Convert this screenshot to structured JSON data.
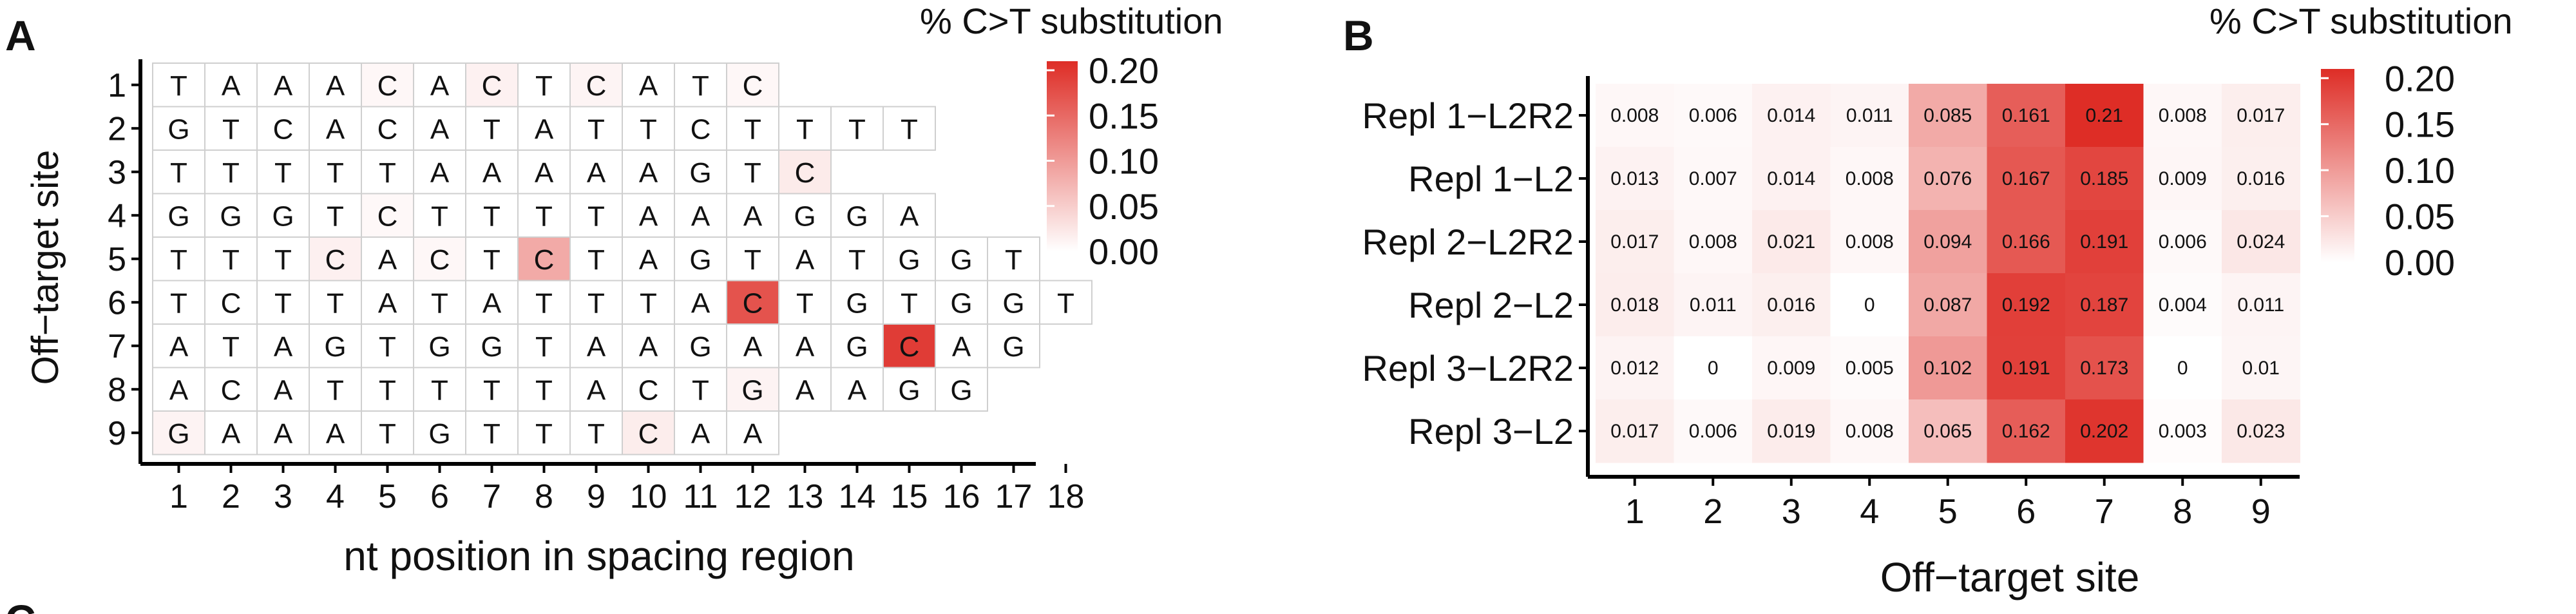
{
  "panels": {
    "a_letter": "A",
    "b_letter": "B",
    "c_letter": "C"
  },
  "colors": {
    "low": "#ffffff",
    "high": "#de2d26",
    "grid": "#cfcfcf",
    "axis": "#000000"
  },
  "chart_data": [
    {
      "type": "heatmap",
      "panel": "A",
      "xlabel": "nt position in spacing region",
      "ylabel": "Off−target site",
      "legend_title": "% C>T substitution",
      "legend_ticks": [
        "0.20",
        "0.15",
        "0.10",
        "0.05",
        "0.00"
      ],
      "x_ticks": [
        "1",
        "2",
        "3",
        "4",
        "5",
        "6",
        "7",
        "8",
        "9",
        "10",
        "11",
        "12",
        "13",
        "14",
        "15",
        "16",
        "17",
        "18"
      ],
      "y_ticks": [
        "1",
        "2",
        "3",
        "4",
        "5",
        "6",
        "7",
        "8",
        "9"
      ],
      "value_range": [
        0,
        0.21
      ],
      "rows": [
        {
          "site": "1",
          "seq": [
            "T",
            "A",
            "A",
            "A",
            "C",
            "A",
            "C",
            "T",
            "C",
            "A",
            "T",
            "C"
          ],
          "values": [
            0,
            0,
            0,
            0,
            0.008,
            0,
            0.014,
            0,
            0.011,
            0,
            0,
            0.008
          ]
        },
        {
          "site": "2",
          "seq": [
            "G",
            "T",
            "C",
            "A",
            "C",
            "A",
            "T",
            "A",
            "T",
            "T",
            "C",
            "T",
            "T",
            "T",
            "T"
          ],
          "values": [
            0,
            0,
            0,
            0,
            0,
            0,
            0,
            0,
            0,
            0,
            0,
            0,
            0,
            0,
            0
          ]
        },
        {
          "site": "3",
          "seq": [
            "T",
            "T",
            "T",
            "T",
            "T",
            "A",
            "A",
            "A",
            "A",
            "A",
            "G",
            "T",
            "C"
          ],
          "values": [
            0,
            0,
            0,
            0,
            0,
            0,
            0,
            0,
            0,
            0,
            0,
            0,
            0.02
          ]
        },
        {
          "site": "4",
          "seq": [
            "G",
            "G",
            "G",
            "T",
            "C",
            "T",
            "T",
            "T",
            "T",
            "A",
            "A",
            "A",
            "G",
            "G",
            "A"
          ],
          "values": [
            0,
            0,
            0,
            0,
            0.007,
            0,
            0,
            0,
            0,
            0,
            0,
            0,
            0,
            0,
            0
          ]
        },
        {
          "site": "5",
          "seq": [
            "T",
            "T",
            "T",
            "C",
            "A",
            "C",
            "T",
            "C",
            "T",
            "A",
            "G",
            "T",
            "A",
            "T",
            "G",
            "G",
            "T"
          ],
          "values": [
            0,
            0,
            0,
            0.015,
            0,
            0.008,
            0,
            0.085,
            0,
            0,
            0,
            0,
            0,
            0,
            0,
            0,
            0
          ]
        },
        {
          "site": "6",
          "seq": [
            "T",
            "C",
            "T",
            "T",
            "A",
            "T",
            "A",
            "T",
            "T",
            "T",
            "A",
            "C",
            "T",
            "G",
            "T",
            "G",
            "G",
            "T"
          ],
          "values": [
            0,
            0,
            0,
            0,
            0,
            0,
            0,
            0,
            0,
            0,
            0,
            0.172,
            0,
            0,
            0,
            0,
            0,
            0
          ]
        },
        {
          "site": "7",
          "seq": [
            "A",
            "T",
            "A",
            "G",
            "T",
            "G",
            "G",
            "T",
            "A",
            "A",
            "G",
            "A",
            "A",
            "G",
            "C",
            "A",
            "G"
          ],
          "values": [
            0,
            0,
            0,
            0,
            0,
            0,
            0,
            0,
            0,
            0,
            0,
            0,
            0,
            0,
            0.195,
            0,
            0
          ]
        },
        {
          "site": "8",
          "seq": [
            "A",
            "C",
            "A",
            "T",
            "T",
            "T",
            "T",
            "T",
            "A",
            "C",
            "T",
            "G",
            "A",
            "A",
            "G",
            "G"
          ],
          "values": [
            0,
            0,
            0,
            0,
            0,
            0,
            0,
            0,
            0,
            0,
            0,
            0.012,
            0,
            0,
            0,
            0
          ]
        },
        {
          "site": "9",
          "seq": [
            "G",
            "A",
            "A",
            "A",
            "T",
            "G",
            "T",
            "T",
            "T",
            "C",
            "A",
            "A"
          ],
          "values": [
            0.012,
            0,
            0,
            0,
            0,
            0,
            0,
            0,
            0,
            0.018,
            0,
            0
          ]
        }
      ]
    },
    {
      "type": "heatmap",
      "panel": "B",
      "xlabel": "Off−target site",
      "legend_title": "% C>T substitution",
      "legend_ticks": [
        "0.20",
        "0.15",
        "0.10",
        "0.05",
        "0.00"
      ],
      "x_ticks": [
        "1",
        "2",
        "3",
        "4",
        "5",
        "6",
        "7",
        "8",
        "9"
      ],
      "value_range": [
        0,
        0.21
      ],
      "rows": [
        {
          "label": "Repl 1−L2R2",
          "values": [
            0.008,
            0.006,
            0.014,
            0.011,
            0.085,
            0.161,
            0.21,
            0.008,
            0.017
          ],
          "labels": [
            "0.008",
            "0.006",
            "0.014",
            "0.011",
            "0.085",
            "0.161",
            "0.21",
            "0.008",
            "0.017"
          ]
        },
        {
          "label": "Repl 1−L2",
          "values": [
            0.013,
            0.007,
            0.014,
            0.008,
            0.076,
            0.167,
            0.185,
            0.009,
            0.016
          ],
          "labels": [
            "0.013",
            "0.007",
            "0.014",
            "0.008",
            "0.076",
            "0.167",
            "0.185",
            "0.009",
            "0.016"
          ]
        },
        {
          "label": "Repl 2−L2R2",
          "values": [
            0.017,
            0.008,
            0.021,
            0.008,
            0.094,
            0.166,
            0.191,
            0.006,
            0.024
          ],
          "labels": [
            "0.017",
            "0.008",
            "0.021",
            "0.008",
            "0.094",
            "0.166",
            "0.191",
            "0.006",
            "0.024"
          ]
        },
        {
          "label": "Repl 2−L2",
          "values": [
            0.018,
            0.011,
            0.016,
            0,
            0.087,
            0.192,
            0.187,
            0.004,
            0.011
          ],
          "labels": [
            "0.018",
            "0.011",
            "0.016",
            "0",
            "0.087",
            "0.192",
            "0.187",
            "0.004",
            "0.011"
          ]
        },
        {
          "label": "Repl 3−L2R2",
          "values": [
            0.012,
            0,
            0.009,
            0.005,
            0.102,
            0.191,
            0.173,
            0,
            0.01
          ],
          "labels": [
            "0.012",
            "0",
            "0.009",
            "0.005",
            "0.102",
            "0.191",
            "0.173",
            "0",
            "0.01"
          ]
        },
        {
          "label": "Repl 3−L2",
          "values": [
            0.017,
            0.006,
            0.019,
            0.008,
            0.065,
            0.162,
            0.202,
            0.003,
            0.023
          ],
          "labels": [
            "0.017",
            "0.006",
            "0.019",
            "0.008",
            "0.065",
            "0.162",
            "0.202",
            "0.003",
            "0.023"
          ]
        }
      ]
    }
  ]
}
